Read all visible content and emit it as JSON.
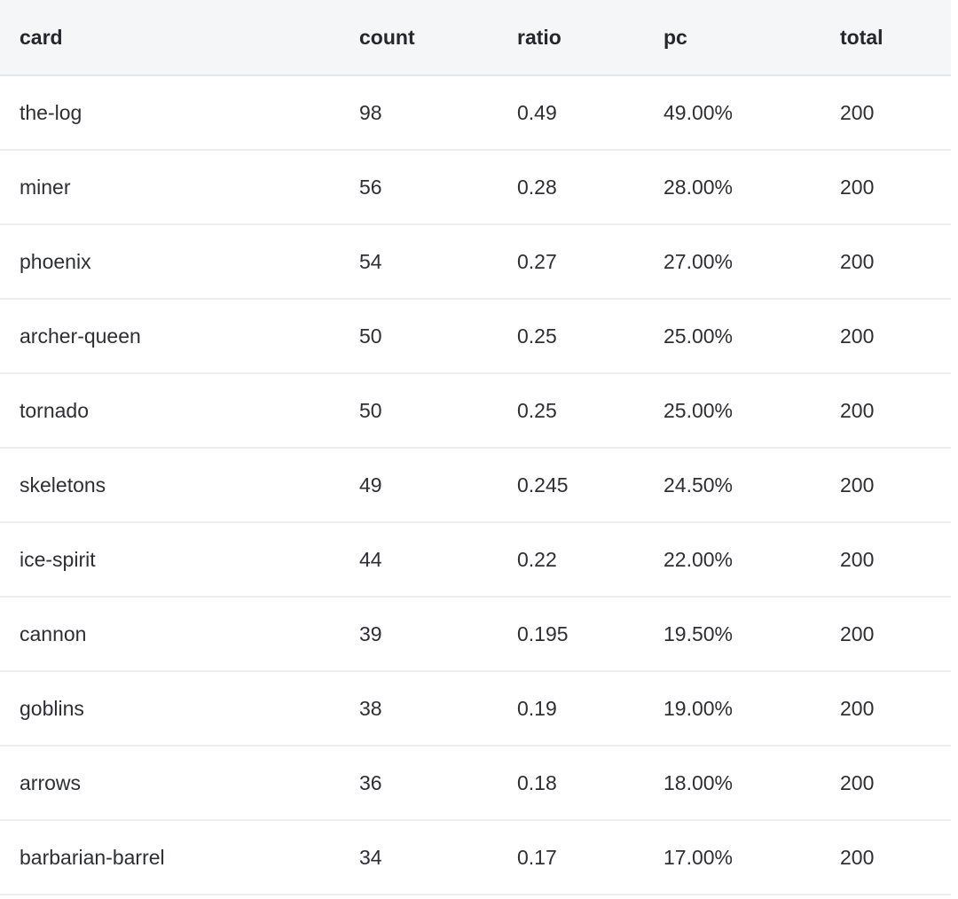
{
  "table": {
    "name": "card-usage-stats",
    "columns": [
      {
        "key": "card",
        "label": "card"
      },
      {
        "key": "count",
        "label": "count"
      },
      {
        "key": "ratio",
        "label": "ratio"
      },
      {
        "key": "pc",
        "label": "pc"
      },
      {
        "key": "total",
        "label": "total"
      }
    ],
    "rows": [
      {
        "card": "the-log",
        "count": "98",
        "ratio": "0.49",
        "pc": "49.00%",
        "total": "200"
      },
      {
        "card": "miner",
        "count": "56",
        "ratio": "0.28",
        "pc": "28.00%",
        "total": "200"
      },
      {
        "card": "phoenix",
        "count": "54",
        "ratio": "0.27",
        "pc": "27.00%",
        "total": "200"
      },
      {
        "card": "archer-queen",
        "count": "50",
        "ratio": "0.25",
        "pc": "25.00%",
        "total": "200"
      },
      {
        "card": "tornado",
        "count": "50",
        "ratio": "0.25",
        "pc": "25.00%",
        "total": "200"
      },
      {
        "card": "skeletons",
        "count": "49",
        "ratio": "0.245",
        "pc": "24.50%",
        "total": "200"
      },
      {
        "card": "ice-spirit",
        "count": "44",
        "ratio": "0.22",
        "pc": "22.00%",
        "total": "200"
      },
      {
        "card": "cannon",
        "count": "39",
        "ratio": "0.195",
        "pc": "19.50%",
        "total": "200"
      },
      {
        "card": "goblins",
        "count": "38",
        "ratio": "0.19",
        "pc": "19.00%",
        "total": "200"
      },
      {
        "card": "arrows",
        "count": "36",
        "ratio": "0.18",
        "pc": "18.00%",
        "total": "200"
      },
      {
        "card": "barbarian-barrel",
        "count": "34",
        "ratio": "0.17",
        "pc": "17.00%",
        "total": "200"
      }
    ]
  },
  "colors": {
    "header_background": "#f5f6f8",
    "header_border": "#e5e6ea",
    "row_border": "#eceef1",
    "text": "#2e2f33"
  }
}
